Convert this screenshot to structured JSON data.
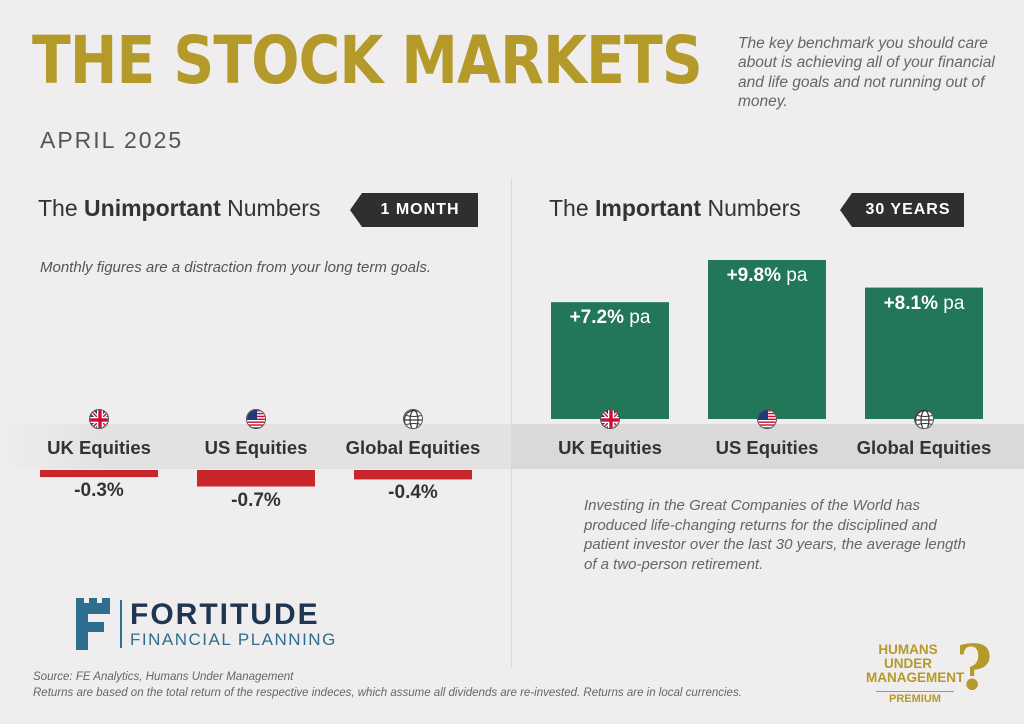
{
  "header": {
    "title": "THE STOCK MARKETS",
    "date": "APRIL 2025",
    "intro": "The key benchmark you should care about is achieving all of your financial and life goals and not running out of money."
  },
  "left_section": {
    "heading_pre": "The ",
    "heading_bold": "Unimportant",
    "heading_post": " Numbers",
    "tag": "1 MONTH",
    "note": "Monthly figures are a distraction from your long term goals."
  },
  "right_section": {
    "heading_pre": "The ",
    "heading_bold": "Important",
    "heading_post": " Numbers",
    "tag": "30 YEARS",
    "note": "Investing in the Great Companies of the World has produced life-changing returns for the disciplined and patient investor over the last 30 years, the average length of a two-person retirement."
  },
  "chart_data": [
    {
      "type": "bar",
      "categories": [
        "UK Equities",
        "US Equities",
        "Global Equities"
      ],
      "values": [
        -0.3,
        -0.7,
        -0.4
      ],
      "value_labels": [
        "-0.3%",
        "-0.7%",
        "-0.4%"
      ],
      "title": "",
      "xlabel": "",
      "ylabel": "",
      "colors": [
        "#c9262c"
      ],
      "icons": [
        "uk-flag-icon",
        "us-flag-icon",
        "globe-icon"
      ]
    },
    {
      "type": "bar",
      "categories": [
        "UK Equities",
        "US Equities",
        "Global Equities"
      ],
      "values": [
        7.2,
        9.8,
        8.1
      ],
      "value_labels": [
        {
          "num": "+7.2%",
          "unit": "pa"
        },
        {
          "num": "+9.8%",
          "unit": "pa"
        },
        {
          "num": "+8.1%",
          "unit": "pa"
        }
      ],
      "title": "",
      "xlabel": "",
      "ylabel": "",
      "colors": [
        "#217757"
      ],
      "icons": [
        "uk-flag-icon",
        "us-flag-icon",
        "globe-icon"
      ]
    }
  ],
  "branding": {
    "company_name": "FORTITUDE",
    "company_sub": "FINANCIAL PLANNING",
    "partner_line1": "HUMANS",
    "partner_line2": "UNDER",
    "partner_line3": "MANAGEMENT",
    "partner_tier": "PREMIUM"
  },
  "footer": {
    "source": "Source: FE Analytics, Humans Under Management",
    "disclaimer": "Returns are based on the total return of the respective indeces, which assume all dividends are re-invested. Returns are in local currencies."
  },
  "colors": {
    "gold": "#b39a2b",
    "green": "#217757",
    "red": "#c9262c",
    "dark": "#2f2f2f",
    "navy": "#1f3550",
    "teal": "#2f6e8f"
  }
}
